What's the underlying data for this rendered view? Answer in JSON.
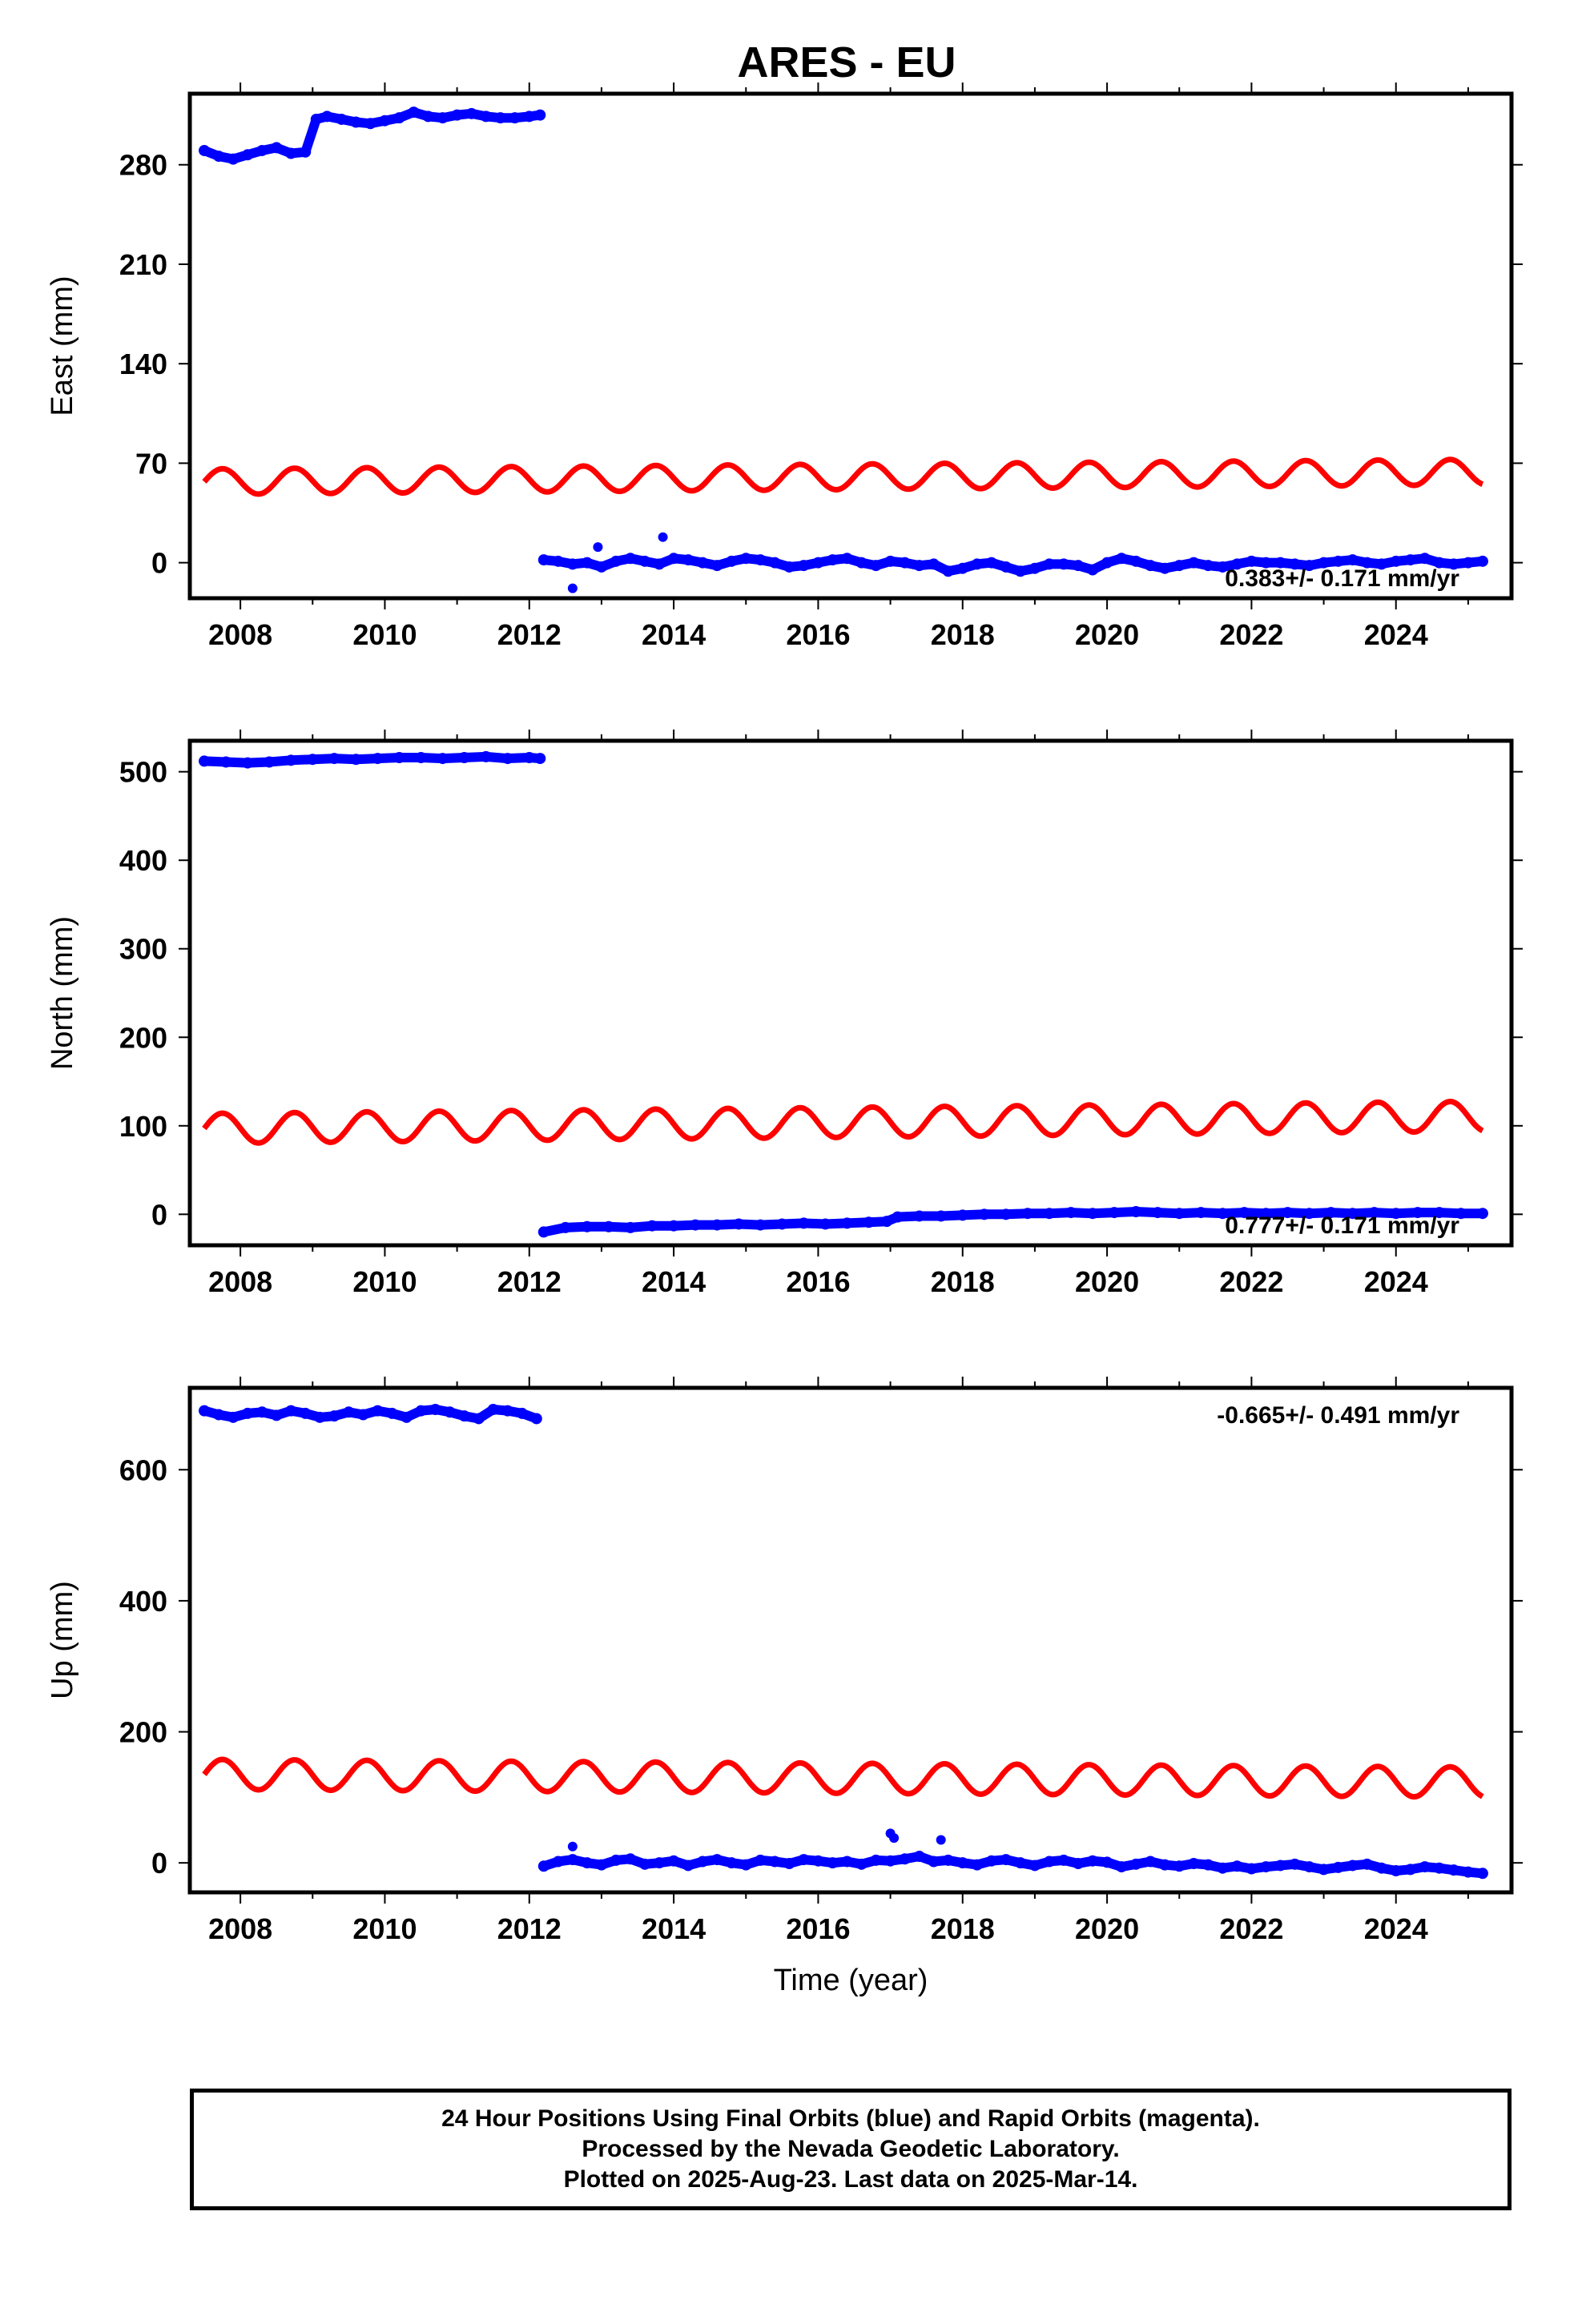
{
  "title": "ARES - EU",
  "colors": {
    "final_orbits": "#0000ff",
    "model_fit": "#ff0000",
    "axes": "#000000"
  },
  "chart_data": [
    {
      "type": "scatter",
      "panel": "east",
      "ylabel": "East (mm)",
      "xlabel": "",
      "xlim": [
        2007.3,
        2025.6
      ],
      "ylim": [
        -25,
        330
      ],
      "xticks": [
        2008,
        2010,
        2012,
        2014,
        2016,
        2018,
        2020,
        2022,
        2024
      ],
      "yticks": [
        0,
        70,
        140,
        210,
        280
      ],
      "rate_label": "0.383+/- 0.171 mm/yr",
      "rate_position": "bottom-right",
      "series": [
        {
          "kind": "observed",
          "color": "#0000ff",
          "x": [
            2007.5,
            2007.7,
            2007.9,
            2008.1,
            2008.3,
            2008.5,
            2008.7,
            2008.9,
            2009.05,
            2009.2,
            2009.4,
            2009.6,
            2009.8,
            2010.0,
            2010.2,
            2010.4,
            2010.6,
            2010.8,
            2011.0,
            2011.2,
            2011.4,
            2011.6,
            2011.8,
            2012.0,
            2012.15
          ],
          "y": [
            290,
            286,
            284,
            287,
            290,
            292,
            288,
            289,
            312,
            314,
            312,
            310,
            309,
            311,
            313,
            317,
            314,
            313,
            315,
            316,
            314,
            313,
            313,
            314,
            315
          ]
        },
        {
          "kind": "observed",
          "color": "#0000ff",
          "x": [
            2012.2,
            2012.4,
            2012.6,
            2012.8,
            2013.0,
            2013.2,
            2013.4,
            2013.6,
            2013.8,
            2014.0,
            2014.2,
            2014.4,
            2014.6,
            2014.8,
            2015.0,
            2015.2,
            2015.4,
            2015.6,
            2015.8,
            2016.0,
            2016.2,
            2016.4,
            2016.6,
            2016.8,
            2017.0,
            2017.2,
            2017.4,
            2017.6,
            2017.8,
            2018.0,
            2018.2,
            2018.4,
            2018.6,
            2018.8,
            2019.0,
            2019.2,
            2019.4,
            2019.6,
            2019.8,
            2020.0,
            2020.2,
            2020.4,
            2020.6,
            2020.8,
            2021.0,
            2021.2,
            2021.4,
            2021.6,
            2021.8,
            2022.0,
            2022.2,
            2022.4,
            2022.6,
            2022.8,
            2023.0,
            2023.2,
            2023.4,
            2023.6,
            2023.8,
            2024.0,
            2024.2,
            2024.4,
            2024.6,
            2024.8,
            2025.0,
            2025.2
          ],
          "y": [
            2,
            1,
            -1,
            0,
            -3,
            1,
            3,
            1,
            -1,
            3,
            2,
            0,
            -2,
            1,
            3,
            2,
            0,
            -3,
            -2,
            0,
            2,
            3,
            0,
            -2,
            1,
            0,
            -2,
            -1,
            -6,
            -4,
            -1,
            0,
            -3,
            -6,
            -4,
            -1,
            -1,
            -2,
            -5,
            0,
            3,
            1,
            -2,
            -4,
            -2,
            0,
            -2,
            -3,
            -1,
            1,
            0,
            0,
            -1,
            -2,
            0,
            1,
            2,
            0,
            -1,
            1,
            2,
            3,
            0,
            -1,
            0,
            1
          ]
        },
        {
          "kind": "outlier",
          "color": "#0000ff",
          "x": [
            2012.6,
            2012.95,
            2013.85
          ],
          "y": [
            -18,
            11,
            18
          ]
        },
        {
          "kind": "model",
          "color": "#ff0000",
          "start": 2007.5,
          "end": 2025.2,
          "base": 57,
          "slope": 0.383,
          "amplitude": 9,
          "phase": 0.0
        }
      ]
    },
    {
      "type": "scatter",
      "panel": "north",
      "ylabel": "North (mm)",
      "xlabel": "",
      "xlim": [
        2007.3,
        2025.6
      ],
      "ylim": [
        -35,
        535
      ],
      "xticks": [
        2008,
        2010,
        2012,
        2014,
        2016,
        2018,
        2020,
        2022,
        2024
      ],
      "yticks": [
        0,
        100,
        200,
        300,
        400,
        500
      ],
      "rate_label": "0.777+/- 0.171 mm/yr",
      "rate_position": "bottom-right",
      "series": [
        {
          "kind": "observed",
          "color": "#0000ff",
          "x": [
            2007.5,
            2007.8,
            2008.1,
            2008.4,
            2008.7,
            2009.0,
            2009.3,
            2009.6,
            2009.9,
            2010.2,
            2010.5,
            2010.8,
            2011.1,
            2011.4,
            2011.7,
            2012.0,
            2012.15
          ],
          "y": [
            512,
            511,
            510,
            511,
            513,
            514,
            515,
            514,
            515,
            516,
            516,
            515,
            516,
            517,
            515,
            516,
            515
          ]
        },
        {
          "kind": "observed",
          "color": "#0000ff",
          "x": [
            2012.2,
            2012.5,
            2012.8,
            2013.1,
            2013.4,
            2013.7,
            2014.0,
            2014.3,
            2014.6,
            2014.9,
            2015.2,
            2015.5,
            2015.8,
            2016.1,
            2016.4,
            2016.7,
            2016.95,
            2017.1,
            2017.4,
            2017.7,
            2018.0,
            2018.3,
            2018.6,
            2018.9,
            2019.2,
            2019.5,
            2019.8,
            2020.1,
            2020.4,
            2020.7,
            2021.0,
            2021.3,
            2021.6,
            2021.9,
            2022.2,
            2022.5,
            2022.8,
            2023.1,
            2023.4,
            2023.7,
            2024.0,
            2024.3,
            2024.6,
            2024.9,
            2025.2
          ],
          "y": [
            -20,
            -15,
            -14,
            -14,
            -15,
            -13,
            -13,
            -12,
            -12,
            -11,
            -12,
            -11,
            -10,
            -11,
            -10,
            -9,
            -8,
            -3,
            -2,
            -2,
            -1,
            0,
            0,
            1,
            1,
            2,
            1,
            2,
            3,
            2,
            1,
            2,
            1,
            2,
            1,
            2,
            1,
            2,
            1,
            2,
            1,
            2,
            2,
            1,
            1
          ]
        },
        {
          "kind": "model",
          "color": "#ff0000",
          "start": 2007.5,
          "end": 2025.2,
          "base": 97,
          "slope": 0.777,
          "amplitude": 17,
          "phase": 0.0
        }
      ]
    },
    {
      "type": "scatter",
      "panel": "up",
      "ylabel": "Up (mm)",
      "xlabel": "Time (year)",
      "xlim": [
        2007.3,
        2025.6
      ],
      "ylim": [
        -45,
        725
      ],
      "xticks": [
        2008,
        2010,
        2012,
        2014,
        2016,
        2018,
        2020,
        2022,
        2024
      ],
      "yticks": [
        0,
        200,
        400,
        600
      ],
      "rate_label": "-0.665+/- 0.491 mm/yr",
      "rate_position": "top-right",
      "series": [
        {
          "kind": "observed",
          "color": "#0000ff",
          "x": [
            2007.5,
            2007.7,
            2007.9,
            2008.1,
            2008.3,
            2008.5,
            2008.7,
            2008.9,
            2009.1,
            2009.3,
            2009.5,
            2009.7,
            2009.9,
            2010.1,
            2010.3,
            2010.5,
            2010.7,
            2010.9,
            2011.1,
            2011.3,
            2011.5,
            2011.7,
            2011.9,
            2012.1
          ],
          "y": [
            690,
            684,
            680,
            686,
            688,
            683,
            690,
            686,
            680,
            682,
            688,
            684,
            690,
            686,
            680,
            690,
            692,
            688,
            682,
            678,
            692,
            690,
            686,
            678
          ]
        },
        {
          "kind": "observed",
          "color": "#0000ff",
          "x": [
            2012.2,
            2012.4,
            2012.6,
            2012.8,
            2013.0,
            2013.2,
            2013.4,
            2013.6,
            2013.8,
            2014.0,
            2014.2,
            2014.4,
            2014.6,
            2014.8,
            2015.0,
            2015.2,
            2015.4,
            2015.6,
            2015.8,
            2016.0,
            2016.2,
            2016.4,
            2016.6,
            2016.8,
            2017.0,
            2017.2,
            2017.4,
            2017.6,
            2017.8,
            2018.0,
            2018.2,
            2018.4,
            2018.6,
            2018.8,
            2019.0,
            2019.2,
            2019.4,
            2019.6,
            2019.8,
            2020.0,
            2020.2,
            2020.4,
            2020.6,
            2020.8,
            2021.0,
            2021.2,
            2021.4,
            2021.6,
            2021.8,
            2022.0,
            2022.2,
            2022.4,
            2022.6,
            2022.8,
            2023.0,
            2023.2,
            2023.4,
            2023.6,
            2023.8,
            2024.0,
            2024.2,
            2024.4,
            2024.6,
            2024.8,
            2025.0,
            2025.2
          ],
          "y": [
            -5,
            2,
            5,
            0,
            -3,
            4,
            6,
            -2,
            0,
            3,
            -4,
            2,
            5,
            0,
            -3,
            4,
            2,
            -1,
            5,
            3,
            0,
            2,
            -2,
            4,
            3,
            6,
            10,
            2,
            4,
            0,
            -3,
            3,
            5,
            0,
            -4,
            2,
            4,
            -1,
            3,
            1,
            -6,
            -2,
            2,
            -3,
            -5,
            -1,
            -3,
            -8,
            -5,
            -9,
            -6,
            -4,
            -2,
            -6,
            -10,
            -7,
            -4,
            -2,
            -8,
            -12,
            -10,
            -6,
            -8,
            -11,
            -14,
            -16
          ]
        },
        {
          "kind": "outlier",
          "color": "#0000ff",
          "x": [
            2012.6,
            2017.0,
            2017.05,
            2017.7
          ],
          "y": [
            25,
            45,
            38,
            35
          ]
        },
        {
          "kind": "model",
          "color": "#ff0000",
          "start": 2007.5,
          "end": 2025.2,
          "base": 135,
          "slope": -0.665,
          "amplitude": 23,
          "phase": 0.0
        }
      ]
    }
  ],
  "footer": {
    "line1": "24 Hour Positions Using Final Orbits (blue) and Rapid Orbits (magenta).",
    "line2": "Processed by the Nevada Geodetic Laboratory.",
    "line3": "Plotted on 2025-Aug-23. Last data on 2025-Mar-14."
  }
}
